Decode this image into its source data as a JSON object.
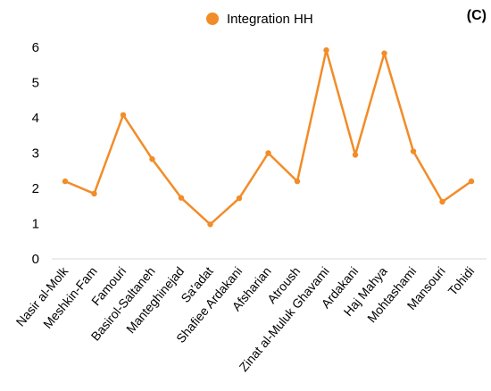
{
  "panel_label": "(C)",
  "chart_data": {
    "type": "line",
    "title": "",
    "xlabel": "",
    "ylabel": "",
    "ylim": [
      0,
      6
    ],
    "yticks": [
      0,
      1,
      2,
      3,
      4,
      5,
      6
    ],
    "grid": false,
    "legend_position": "top-center",
    "categories": [
      "Nasir al-Molk",
      "Meshkin-Fam",
      "Famouri",
      "Basirol-Saltaneh",
      "Manteghinejad",
      "Sa'adat",
      "Shafiee Ardakani",
      "Afsharian",
      "Atroush",
      "Zinat al-Muluk Ghavami",
      "Ardakani",
      "Haj Mahya",
      "Mohtashami",
      "Mansouri",
      "Tohidi"
    ],
    "series": [
      {
        "name": "Integration HH",
        "color": "#f28c28",
        "values": [
          2.2,
          1.85,
          4.08,
          2.83,
          1.73,
          0.98,
          1.72,
          3.0,
          2.2,
          5.92,
          2.95,
          5.83,
          3.05,
          1.62,
          2.2
        ]
      }
    ]
  }
}
